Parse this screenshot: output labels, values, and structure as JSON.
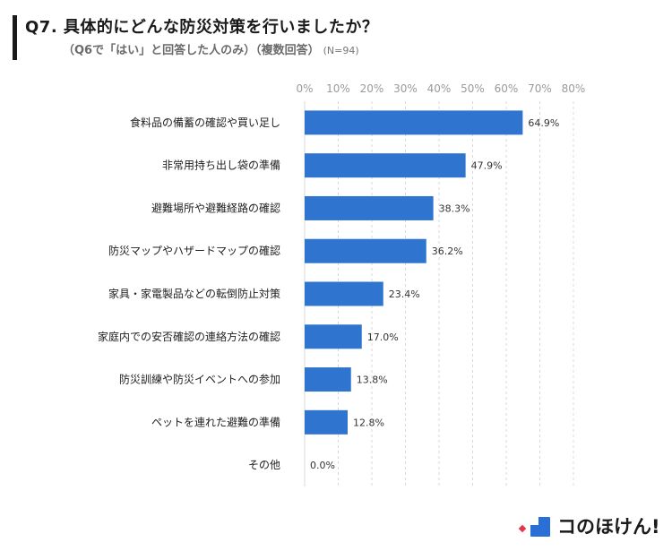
{
  "header": {
    "title": "Q7. 具体的にどんな防災対策を行いましたか？",
    "subtitle": "（Q6で「はい」と回答した人のみ）（複数回答）",
    "sample_size": "(N=94)"
  },
  "logo": {
    "text": "コのほけん!",
    "colors": {
      "red": "#e8344a",
      "blue": "#2a6fd6",
      "dark": "#1a3a8a"
    }
  },
  "chart_data": {
    "type": "bar",
    "orientation": "horizontal",
    "categories": [
      "食料品の備蓄の確認や買い足し",
      "非常用持ち出し袋の準備",
      "避難場所や避難経路の確認",
      "防災マップやハザードマップの確認",
      "家具・家電製品などの転倒防止対策",
      "家庭内での安否確認の連絡方法の確認",
      "防災訓練や防災イベントへの参加",
      "ペットを連れた避難の準備",
      "その他"
    ],
    "values": [
      64.9,
      47.9,
      38.3,
      36.2,
      23.4,
      17.0,
      13.8,
      12.8,
      0.0
    ],
    "value_labels": [
      "64.9%",
      "47.9%",
      "38.3%",
      "36.2%",
      "23.4%",
      "17.0%",
      "13.8%",
      "12.8%",
      "0.0%"
    ],
    "xlim": [
      0,
      80
    ],
    "x_ticks": [
      "0%",
      "10%",
      "20%",
      "30%",
      "40%",
      "50%",
      "60%",
      "70%",
      "80%"
    ],
    "axis_position": "top",
    "grid": true,
    "bar_color": "#2f75cf"
  }
}
